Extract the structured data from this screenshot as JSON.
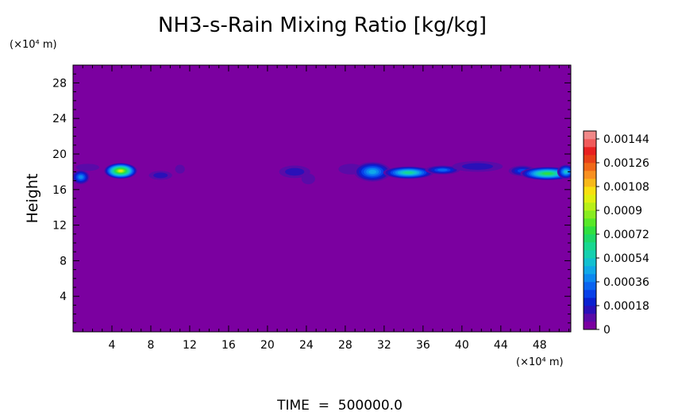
{
  "chart_data": {
    "type": "heatmap",
    "title": "NH3-s-Rain Mixing Ratio [kg/kg]",
    "ylabel": "Height",
    "y_unit": "(×10⁴ m)",
    "x_unit": "(×10⁴ m)",
    "xlim": [
      0,
      51.2
    ],
    "ylim": [
      0,
      30
    ],
    "x_ticks": [
      "4",
      "8",
      "12",
      "16",
      "20",
      "24",
      "28",
      "32",
      "36",
      "40",
      "44",
      "48"
    ],
    "x_tick_values": [
      4,
      8,
      12,
      16,
      20,
      24,
      28,
      32,
      36,
      40,
      44,
      48
    ],
    "y_ticks": [
      "4",
      "8",
      "12",
      "16",
      "20",
      "24",
      "28"
    ],
    "y_tick_values": [
      4,
      8,
      12,
      16,
      20,
      24,
      28
    ],
    "footer": "TIME  =  500000.0",
    "colorbar": {
      "range": [
        0,
        0.0015
      ],
      "labels": [
        "0",
        "0.00018",
        "0.00036",
        "0.00054",
        "0.00072",
        "0.0009",
        "0.00108",
        "0.00126",
        "0.00144"
      ],
      "label_values": [
        0,
        0.00018,
        0.00036,
        0.00054,
        0.00072,
        0.0009,
        0.00108,
        0.00126,
        0.00144
      ],
      "levels": 25,
      "colors": [
        "#7b00a0",
        "#5a0aa8",
        "#2a10b8",
        "#0a20d0",
        "#0840e8",
        "#0a64f0",
        "#0c88f0",
        "#10a8e8",
        "#12c0d0",
        "#14d0b0",
        "#18d890",
        "#1ed868",
        "#30e040",
        "#58e828",
        "#88ec20",
        "#b8f018",
        "#e0f010",
        "#f8e010",
        "#f8b818",
        "#f89020",
        "#f06818",
        "#e84018",
        "#e82020",
        "#f05a5a",
        "#f08888"
      ]
    },
    "features": [
      {
        "x": 0.8,
        "y": 17.4,
        "dx": 0.9,
        "dy": 0.8,
        "peak": 0.0004
      },
      {
        "x": 1.5,
        "y": 18.5,
        "dx": 1.2,
        "dy": 0.4,
        "peak": 0.0001
      },
      {
        "x": 4.9,
        "y": 18.1,
        "dx": 1.7,
        "dy": 0.9,
        "peak": 0.001
      },
      {
        "x": 9.0,
        "y": 17.6,
        "dx": 1.2,
        "dy": 0.5,
        "peak": 0.00012
      },
      {
        "x": 11.0,
        "y": 18.3,
        "dx": 0.5,
        "dy": 0.5,
        "peak": 8e-05
      },
      {
        "x": 22.8,
        "y": 18.0,
        "dx": 1.6,
        "dy": 0.7,
        "peak": 0.00012
      },
      {
        "x": 24.2,
        "y": 17.2,
        "dx": 0.7,
        "dy": 0.6,
        "peak": 0.0001
      },
      {
        "x": 28.6,
        "y": 18.3,
        "dx": 1.3,
        "dy": 0.6,
        "peak": 8e-05
      },
      {
        "x": 30.8,
        "y": 18.0,
        "dx": 1.9,
        "dy": 1.1,
        "peak": 0.00045
      },
      {
        "x": 34.5,
        "y": 17.9,
        "dx": 2.6,
        "dy": 0.7,
        "peak": 0.0006
      },
      {
        "x": 38.0,
        "y": 18.2,
        "dx": 1.8,
        "dy": 0.5,
        "peak": 0.0003
      },
      {
        "x": 41.6,
        "y": 18.6,
        "dx": 2.6,
        "dy": 0.6,
        "peak": 0.00016
      },
      {
        "x": 46.2,
        "y": 18.1,
        "dx": 1.4,
        "dy": 0.6,
        "peak": 0.00025
      },
      {
        "x": 48.8,
        "y": 17.8,
        "dx": 2.8,
        "dy": 0.75,
        "peak": 0.00075
      },
      {
        "x": 50.7,
        "y": 18.0,
        "dx": 0.9,
        "dy": 0.8,
        "peak": 0.0005
      }
    ]
  }
}
